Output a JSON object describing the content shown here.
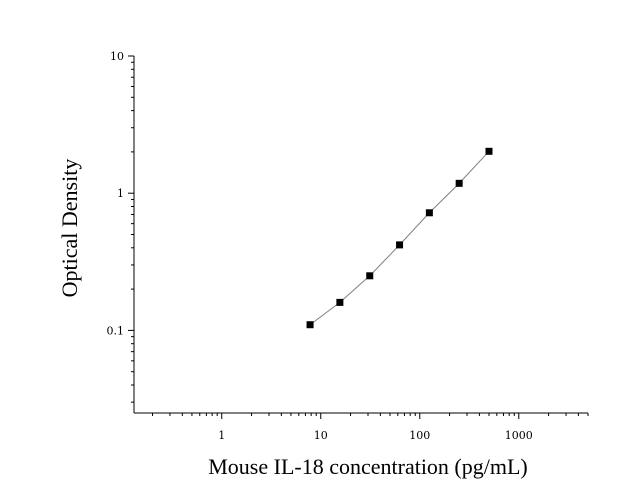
{
  "chart_data": {
    "type": "scatter",
    "title": "",
    "xlabel": "Mouse IL-18 concentration (pg/mL)",
    "ylabel": "Optical Density",
    "xscale": "log",
    "yscale": "log",
    "xlim": [
      0.13,
      5000
    ],
    "ylim": [
      0.025,
      10
    ],
    "x_ticks": [
      1,
      10,
      100,
      1000
    ],
    "x_tick_labels": [
      "1",
      "10",
      "100",
      "1000"
    ],
    "y_ticks": [
      0.1,
      1,
      10
    ],
    "y_tick_labels": [
      "0.1",
      "1",
      "10"
    ],
    "grid": false,
    "legend": "none",
    "series": [
      {
        "x": [
          7.8,
          15.6,
          31.25,
          62.5,
          125,
          250,
          500
        ],
        "y": [
          0.11,
          0.16,
          0.25,
          0.42,
          0.72,
          1.18,
          2.02
        ],
        "marker": "square",
        "marker_color": "#000000",
        "line_color": "#808080"
      }
    ]
  }
}
